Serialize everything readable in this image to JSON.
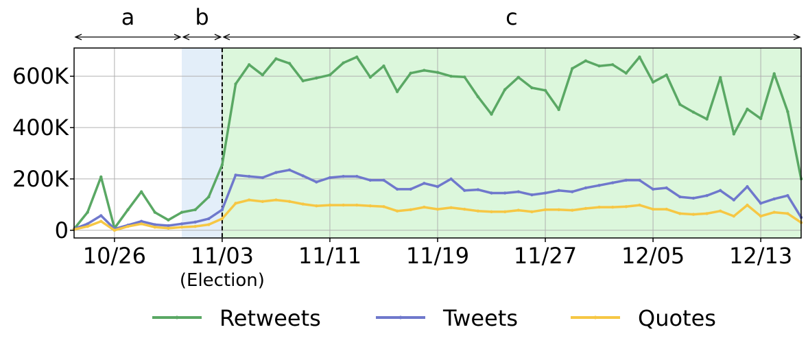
{
  "chart_data": {
    "type": "line",
    "start_date": "2020-10-23",
    "x_tick_labels": [
      "10/26",
      "11/03",
      "11/11",
      "11/19",
      "11/27",
      "12/05",
      "12/13"
    ],
    "x_tick_days": [
      3,
      11,
      19,
      27,
      35,
      43,
      51
    ],
    "election_day": 11,
    "election_label": "(Election)",
    "y_ticks": [
      0,
      200000,
      400000,
      600000
    ],
    "y_tick_labels": [
      "0",
      "200K",
      "400K",
      "600K"
    ],
    "ylim": [
      -30000,
      710000
    ],
    "xlim": [
      0,
      54
    ],
    "grid": true,
    "legend_position": "bottom",
    "periods": [
      {
        "label": "a",
        "start": 0,
        "end": 8,
        "shade": "none"
      },
      {
        "label": "b",
        "start": 8,
        "end": 11,
        "shade": "#e3eef9"
      },
      {
        "label": "c",
        "start": 11,
        "end": 54,
        "shade": "#dcf7dc"
      }
    ],
    "series": [
      {
        "name": "Retweets",
        "color": "#5aa864",
        "values": [
          5000,
          70000,
          208000,
          8000,
          80000,
          150000,
          70000,
          40000,
          70000,
          80000,
          130000,
          255000,
          570000,
          645000,
          605000,
          668000,
          650000,
          582000,
          593000,
          605000,
          652000,
          675000,
          596000,
          640000,
          540000,
          612000,
          623000,
          615000,
          600000,
          597000,
          520000,
          452000,
          548000,
          596000,
          555000,
          545000,
          470000,
          630000,
          660000,
          640000,
          645000,
          612000,
          675000,
          577000,
          605000,
          490000,
          460000,
          433000,
          595000,
          375000,
          472000,
          435000,
          610000,
          462000,
          200000
        ]
      },
      {
        "name": "Tweets",
        "color": "#6f78cc",
        "values": [
          5000,
          25000,
          57000,
          5000,
          20000,
          35000,
          22000,
          18000,
          25000,
          32000,
          45000,
          80000,
          215000,
          210000,
          205000,
          225000,
          235000,
          212000,
          188000,
          205000,
          210000,
          210000,
          195000,
          195000,
          160000,
          160000,
          183000,
          170000,
          200000,
          155000,
          158000,
          145000,
          145000,
          150000,
          138000,
          145000,
          155000,
          150000,
          165000,
          175000,
          185000,
          195000,
          195000,
          160000,
          165000,
          130000,
          125000,
          135000,
          155000,
          118000,
          170000,
          105000,
          122000,
          135000,
          50000
        ]
      },
      {
        "name": "Quotes",
        "color": "#f6c744",
        "values": [
          3000,
          15000,
          35000,
          0,
          15000,
          25000,
          12000,
          8000,
          12000,
          15000,
          22000,
          45000,
          105000,
          118000,
          112000,
          118000,
          112000,
          102000,
          95000,
          98000,
          98000,
          98000,
          95000,
          92000,
          75000,
          80000,
          90000,
          82000,
          88000,
          82000,
          75000,
          72000,
          72000,
          78000,
          72000,
          80000,
          80000,
          78000,
          85000,
          90000,
          90000,
          92000,
          98000,
          82000,
          82000,
          65000,
          62000,
          65000,
          75000,
          55000,
          98000,
          55000,
          70000,
          65000,
          30000
        ]
      }
    ]
  }
}
